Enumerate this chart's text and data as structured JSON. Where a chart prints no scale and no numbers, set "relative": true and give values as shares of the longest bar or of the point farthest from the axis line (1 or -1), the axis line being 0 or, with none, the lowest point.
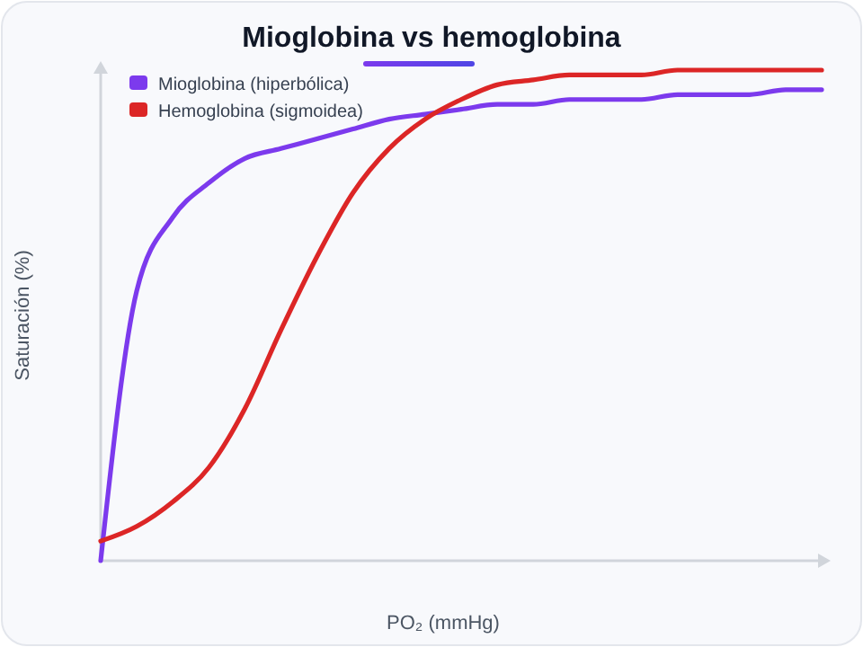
{
  "chart_data": {
    "type": "line",
    "title": "Mioglobina vs hemoglobina",
    "xlabel": "PO₂ (mmHg)",
    "ylabel": "Saturación (%)",
    "relative": true,
    "legend": "top left",
    "marker": "none",
    "line_style": "solid",
    "categories": [
      null,
      null,
      null,
      null,
      null,
      null,
      null,
      null,
      null,
      null,
      null,
      null,
      null,
      null,
      null,
      null,
      null,
      null,
      null,
      null,
      null
    ],
    "series": [
      {
        "name": "Mioglobina (hiperbólica)",
        "color": "#7c3aed",
        "values": [
          0,
          0.55,
          0.7,
          0.77,
          0.82,
          0.84,
          0.86,
          0.88,
          0.9,
          0.91,
          0.92,
          0.93,
          0.93,
          0.94,
          0.94,
          0.94,
          0.95,
          0.95,
          0.95,
          0.96,
          0.96
        ]
      },
      {
        "name": "Hemoglobina (sigmoidea)",
        "color": "#dc2626",
        "values": [
          0.04,
          0.07,
          0.12,
          0.19,
          0.31,
          0.47,
          0.62,
          0.75,
          0.84,
          0.9,
          0.94,
          0.97,
          0.98,
          0.99,
          0.99,
          0.99,
          1,
          1,
          1,
          1,
          1
        ]
      }
    ]
  }
}
